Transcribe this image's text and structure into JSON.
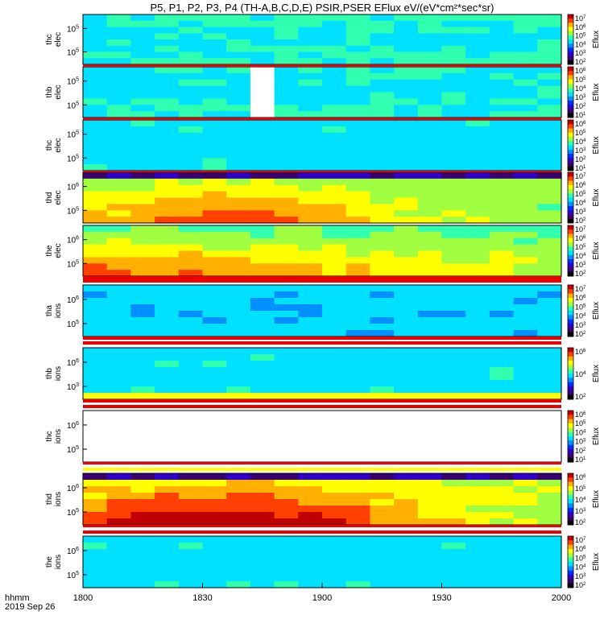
{
  "title": "P5, P1, P2, P3, P4 (TH-A,B,C,D,E) PSIR,PSER EFlux eV/(eV*cm²*sec*sr)",
  "corner_label": {
    "line1": "hhmm",
    "line2": "2019 Sep 26"
  },
  "colorbar_label": "Eflux",
  "colors": {
    "palette": [
      "#000000",
      "#3a0070",
      "#3000c8",
      "#0030ff",
      "#0090ff",
      "#00e0ff",
      "#30ffb0",
      "#a0ff40",
      "#ffff00",
      "#ffb000",
      "#ff4000",
      "#c00000"
    ],
    "stripe_red": "#ee0000",
    "stripe_yellow": "#ffff00"
  },
  "chart_data": {
    "type": "heatmap",
    "x_axis": {
      "ticks": [
        "1800",
        "1830",
        "1900",
        "1930",
        "2000"
      ],
      "range": [
        "18:00",
        "20:00"
      ]
    },
    "panels": [
      {
        "label_top": "thc",
        "label_bot": "elec",
        "yticks": [
          "10^5",
          "10^5"
        ],
        "cb_ticks": [
          "10^7",
          "10^6",
          "10^5",
          "10^4",
          "10^3",
          "10^2"
        ],
        "base": 0.52,
        "fade": 0.08
      },
      {
        "label_top": "thb",
        "label_bot": "elec",
        "yticks": [
          "10^5",
          "10^5"
        ],
        "cb_ticks": [
          "10^6",
          "10^5",
          "10^4",
          "10^3",
          "10^2",
          "10^1"
        ],
        "base": 0.5,
        "fade": 0.06,
        "gap": [
          0.35,
          0.41
        ]
      },
      {
        "label_top": "thc",
        "label_bot": "elec",
        "yticks": [
          "10^5",
          "10^5"
        ],
        "cb_ticks": [
          "10^6",
          "10^5",
          "10^4",
          "10^3",
          "10^2",
          "10^1"
        ],
        "base": 0.48,
        "fade": 0.05
      },
      {
        "label_top": "thd",
        "label_bot": "elec",
        "yticks": [
          "10^6",
          "10^5"
        ],
        "cb_ticks": [
          "10^7",
          "10^6",
          "10^5",
          "10^4",
          "10^3",
          "10^2"
        ],
        "base": 0.6,
        "hot": [
          0.3,
          0.55,
          0.3
        ],
        "top_dark": true
      },
      {
        "label_top": "the",
        "label_bot": "elec",
        "yticks": [
          "10^6",
          "10^5"
        ],
        "cb_ticks": [
          "10^7",
          "10^6",
          "10^5",
          "10^4",
          "10^3",
          "10^2"
        ],
        "base": 0.55,
        "hot_low": true
      },
      {
        "label_top": "tha",
        "label_bot": "ions",
        "yticks": [
          "10^6",
          "10^5"
        ],
        "cb_ticks": [
          "10^7",
          "10^6",
          "10^5",
          "10^4",
          "10^3",
          "10^2"
        ],
        "base": 0.45,
        "fade": 0.04,
        "patch": [
          0.48,
          0.52
        ]
      },
      {
        "label_top": "thb",
        "label_bot": "ions",
        "yticks": [
          "10^6",
          "10^3"
        ],
        "cb_ticks": [
          "10^6",
          "10^4",
          "10^2"
        ],
        "base": 0.47,
        "low_yellow": true
      },
      {
        "label_top": "thc",
        "label_bot": "ions",
        "yticks": [
          "10^6",
          "10^5"
        ],
        "cb_ticks": [
          "10^6",
          "10^5",
          "10^4",
          "10^3",
          "10^2",
          "10^1"
        ],
        "empty": true
      },
      {
        "label_top": "thd",
        "label_bot": "ions",
        "yticks": [
          "10^6",
          "10^5"
        ],
        "cb_ticks": [
          "10^6",
          "10^5",
          "10^4",
          "10^3",
          "10^2"
        ],
        "base": 0.65,
        "hot": [
          0.28,
          0.6,
          0.4
        ],
        "top_dark": true
      },
      {
        "label_top": "the",
        "label_bot": "ions",
        "yticks": [
          "10^6",
          "10^5"
        ],
        "cb_ticks": [
          "10^7",
          "10^6",
          "10^5",
          "10^4",
          "10^3",
          "10^2"
        ],
        "base": 0.48,
        "fade": 0.05
      }
    ]
  }
}
